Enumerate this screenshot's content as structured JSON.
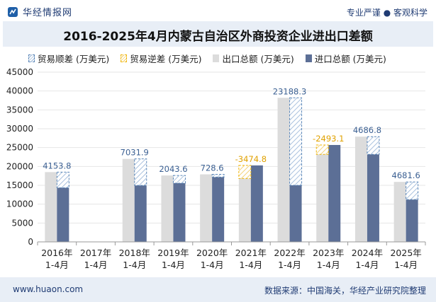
{
  "header": {
    "brand": "华经情报网",
    "tagline": "专业严谨 ● 客观科学"
  },
  "title": "2016-2025年4月内蒙古自治区外商投资企业进出口差额",
  "legend": {
    "surplus": "贸易顺差 (万美元)",
    "deficit": "贸易逆差 (万美元)",
    "export": "出口总额 (万美元)",
    "import": "进口总额 (万美元)"
  },
  "footer": {
    "website": "www.huaon.com",
    "source": "数据来源：中国海关，华经产业研究院整理"
  },
  "colors": {
    "export": "#dcdcdc",
    "import": "#5c6f96",
    "surplus": "#5a86b8",
    "deficit": "#f0b400",
    "label": "#3a5f92",
    "deficit_label": "#e0a100"
  },
  "chart_data": {
    "type": "bar",
    "categories": [
      "2016年\n1-4月",
      "2017年\n1-4月",
      "2018年\n1-4月",
      "2019年\n1-4月",
      "2020年\n1-4月",
      "2021年\n1-4月",
      "2022年\n1-4月",
      "2023年\n1-4月",
      "2024年\n1-4月",
      "2025年\n1-4月"
    ],
    "series": [
      {
        "name": "出口总额 (万美元)",
        "values": [
          18500,
          0,
          22000,
          17600,
          17900,
          16800,
          38200,
          23200,
          27900,
          15900
        ]
      },
      {
        "name": "进口总额 (万美元)",
        "values": [
          14350,
          0,
          14970,
          15560,
          17170,
          20275,
          15010,
          25690,
          23210,
          11220
        ]
      }
    ],
    "balance": {
      "values": [
        4153.8,
        null,
        7031.9,
        2043.6,
        728.6,
        -3474.8,
        23188.3,
        -2493.1,
        4686.8,
        4681.6
      ],
      "labels": [
        "4153.8",
        "",
        "7031.9",
        "2043.6",
        "728.6",
        "-3474.8",
        "23188.3",
        "-2493.1",
        "4686.8",
        "4681.6"
      ]
    },
    "yticks": [
      0,
      5000,
      10000,
      15000,
      20000,
      25000,
      30000,
      35000,
      40000,
      45000
    ],
    "ylim": [
      0,
      45000
    ],
    "xlabel": "",
    "ylabel": "",
    "legend_position": "top"
  }
}
